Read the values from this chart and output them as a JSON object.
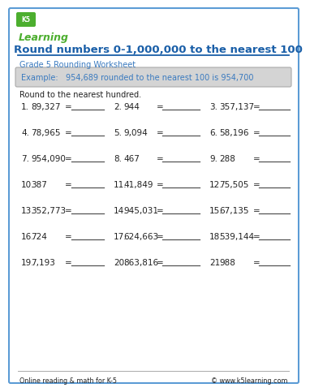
{
  "title": "Round numbers 0-1,000,000 to the nearest 100",
  "subtitle": "Grade 5 Rounding Worksheet",
  "example_text": "Example:   954,689 rounded to the nearest 100 is 954,700",
  "instruction": "Round to the nearest hundred.",
  "problems": [
    [
      {
        "num": "1.",
        "val": "89,327"
      },
      {
        "num": "2.",
        "val": "944"
      },
      {
        "num": "3.",
        "val": "357,137"
      }
    ],
    [
      {
        "num": "4.",
        "val": "78,965"
      },
      {
        "num": "5.",
        "val": "9,094"
      },
      {
        "num": "6.",
        "val": "58,196"
      }
    ],
    [
      {
        "num": "7.",
        "val": "954,090"
      },
      {
        "num": "8.",
        "val": "467"
      },
      {
        "num": "9.",
        "val": "288"
      }
    ],
    [
      {
        "num": "10.",
        "val": "387"
      },
      {
        "num": "11.",
        "val": "41,849"
      },
      {
        "num": "12.",
        "val": "75,505"
      }
    ],
    [
      {
        "num": "13.",
        "val": "352,773"
      },
      {
        "num": "14.",
        "val": "945,031"
      },
      {
        "num": "15.",
        "val": "67,135"
      }
    ],
    [
      {
        "num": "16.",
        "val": "724"
      },
      {
        "num": "17.",
        "val": "624,663"
      },
      {
        "num": "18.",
        "val": "539,144"
      }
    ],
    [
      {
        "num": "19.",
        "val": "7,193"
      },
      {
        "num": "20.",
        "val": "863,816"
      },
      {
        "num": "21.",
        "val": "988"
      }
    ]
  ],
  "footer_left": "Online reading & math for K-5",
  "footer_right": "© www.k5learning.com",
  "title_color": "#1a5fa8",
  "subtitle_color": "#3a7abf",
  "example_color": "#3a7abf",
  "example_bg": "#d4d4d4",
  "border_color": "#5b9bd5",
  "text_color": "#222222",
  "bg_color": "#ffffff",
  "logo_green": "#4cae2e",
  "logo_blue": "#1a5fa8",
  "line_color": "#888888",
  "underline_color": "#555555"
}
